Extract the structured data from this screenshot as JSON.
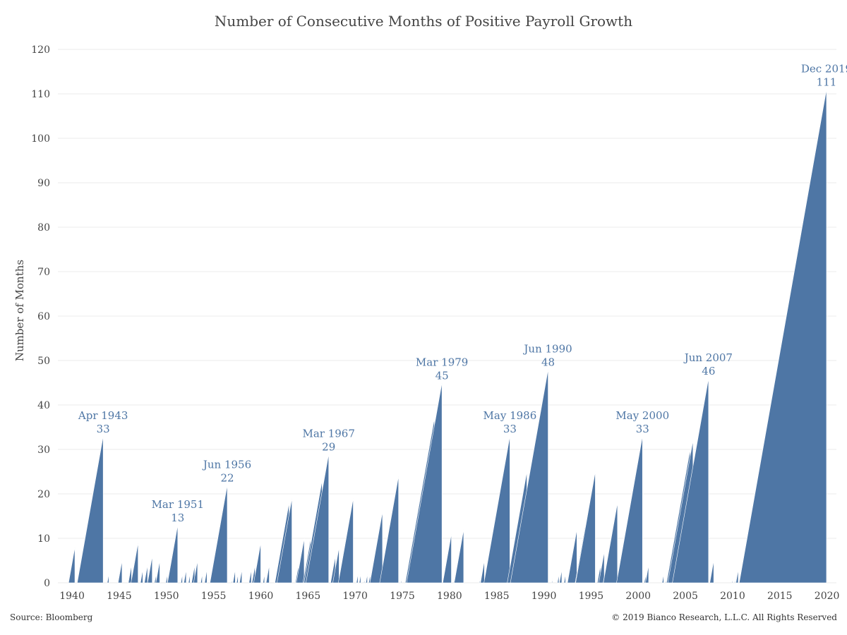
{
  "source": "Source: Bloomberg",
  "copyright": "© 2019 Bianco Research, L.L.C. All Rights Reserved",
  "colors": {
    "bar": "#4e76a5",
    "annotation": "#4e76a5",
    "grid": "#ebebeb",
    "text": "#444444"
  },
  "chart_data": {
    "type": "area",
    "title": "Number of Consecutive Months of Positive Payroll Growth",
    "xlabel": "",
    "ylabel": "Number of Months",
    "xlim": [
      1938.5,
      2021
    ],
    "ylim": [
      0,
      120
    ],
    "yticks": [
      0,
      10,
      20,
      30,
      40,
      50,
      60,
      70,
      80,
      90,
      100,
      110,
      120
    ],
    "xticks": [
      "1940",
      "1945",
      "1950",
      "1955",
      "1960",
      "1965",
      "1970",
      "1975",
      "1980",
      "1985",
      "1990",
      "1995",
      "2000",
      "2005",
      "2010",
      "2015",
      "2020"
    ],
    "grid": true,
    "legend": "none",
    "runs": [
      {
        "end": 1939.8,
        "peak": 2
      },
      {
        "end": 1940.3,
        "peak": 8
      },
      {
        "end": 1940.7,
        "peak": 2
      },
      {
        "end": 1941.3,
        "peak": 7
      },
      {
        "end": 1943.3,
        "peak": 33
      },
      {
        "end": 1943.9,
        "peak": 2
      },
      {
        "end": 1945.1,
        "peak": 3
      },
      {
        "end": 1945.3,
        "peak": 5
      },
      {
        "end": 1946.3,
        "peak": 4
      },
      {
        "end": 1947.0,
        "peak": 9
      },
      {
        "end": 1947.5,
        "peak": 3
      },
      {
        "end": 1948.0,
        "peak": 4
      },
      {
        "end": 1948.5,
        "peak": 6
      },
      {
        "end": 1948.9,
        "peak": 2
      },
      {
        "end": 1949.3,
        "peak": 5
      },
      {
        "end": 1950.1,
        "peak": 2
      },
      {
        "end": 1950.5,
        "peak": 3
      },
      {
        "end": 1951.2,
        "peak": 13
      },
      {
        "end": 1951.7,
        "peak": 2
      },
      {
        "end": 1952.1,
        "peak": 3
      },
      {
        "end": 1952.5,
        "peak": 2
      },
      {
        "end": 1953.0,
        "peak": 4
      },
      {
        "end": 1953.3,
        "peak": 5
      },
      {
        "end": 1953.8,
        "peak": 2
      },
      {
        "end": 1954.3,
        "peak": 3
      },
      {
        "end": 1954.8,
        "peak": 1
      },
      {
        "end": 1955.3,
        "peak": 2
      },
      {
        "end": 1955.9,
        "peak": 3
      },
      {
        "end": 1956.45,
        "peak": 22
      },
      {
        "end": 1957.0,
        "peak": 1
      },
      {
        "end": 1957.3,
        "peak": 3
      },
      {
        "end": 1957.6,
        "peak": 2
      },
      {
        "end": 1958.0,
        "peak": 3
      },
      {
        "end": 1959.0,
        "peak": 3
      },
      {
        "end": 1959.4,
        "peak": 4
      },
      {
        "end": 1960.0,
        "peak": 9
      },
      {
        "end": 1960.4,
        "peak": 2
      },
      {
        "end": 1960.9,
        "peak": 4
      },
      {
        "end": 1961.6,
        "peak": 1
      },
      {
        "end": 1963.0,
        "peak": 18
      },
      {
        "end": 1963.3,
        "peak": 19
      },
      {
        "end": 1964.0,
        "peak": 4
      },
      {
        "end": 1964.6,
        "peak": 10
      },
      {
        "end": 1965.3,
        "peak": 10
      },
      {
        "end": 1966.5,
        "peak": 23
      },
      {
        "end": 1967.2,
        "peak": 29
      },
      {
        "end": 1967.9,
        "peak": 6
      },
      {
        "end": 1968.3,
        "peak": 8
      },
      {
        "end": 1969.0,
        "peak": 7
      },
      {
        "end": 1969.8,
        "peak": 19
      },
      {
        "end": 1970.3,
        "peak": 2
      },
      {
        "end": 1970.6,
        "peak": 2
      },
      {
        "end": 1971.0,
        "peak": 1
      },
      {
        "end": 1971.3,
        "peak": 2
      },
      {
        "end": 1971.6,
        "peak": 2
      },
      {
        "end": 1972.9,
        "peak": 16
      },
      {
        "end": 1973.1,
        "peak": 2
      },
      {
        "end": 1974.6,
        "peak": 24
      },
      {
        "end": 1974.9,
        "peak": 1
      },
      {
        "end": 1975.6,
        "peak": 2
      },
      {
        "end": 1976.6,
        "peak": 13
      },
      {
        "end": 1978.4,
        "peak": 37
      },
      {
        "end": 1979.2,
        "peak": 45
      },
      {
        "end": 1979.5,
        "peak": 2
      },
      {
        "end": 1980.2,
        "peak": 11
      },
      {
        "end": 1980.5,
        "peak": 1
      },
      {
        "end": 1981.5,
        "peak": 12
      },
      {
        "end": 1983.2,
        "peak": 1
      },
      {
        "end": 1983.7,
        "peak": 5
      },
      {
        "end": 1984.3,
        "peak": 3
      },
      {
        "end": 1984.6,
        "peak": 10
      },
      {
        "end": 1986.4,
        "peak": 33
      },
      {
        "end": 1986.8,
        "peak": 2
      },
      {
        "end": 1988.2,
        "peak": 25
      },
      {
        "end": 1990.45,
        "peak": 48
      },
      {
        "end": 1990.9,
        "peak": 1
      },
      {
        "end": 1991.6,
        "peak": 2
      },
      {
        "end": 1991.9,
        "peak": 3
      },
      {
        "end": 1992.3,
        "peak": 2
      },
      {
        "end": 1992.6,
        "peak": 1
      },
      {
        "end": 1993.5,
        "peak": 12
      },
      {
        "end": 1994.4,
        "peak": 13
      },
      {
        "end": 1995.45,
        "peak": 25
      },
      {
        "end": 1996.0,
        "peak": 4
      },
      {
        "end": 1996.4,
        "peak": 7
      },
      {
        "end": 1997.2,
        "peak": 11
      },
      {
        "end": 1997.8,
        "peak": 18
      },
      {
        "end": 1998.8,
        "peak": 10
      },
      {
        "end": 2000.45,
        "peak": 33
      },
      {
        "end": 2000.8,
        "peak": 2
      },
      {
        "end": 2001.1,
        "peak": 4
      },
      {
        "end": 2002.7,
        "peak": 2
      },
      {
        "end": 2003.0,
        "peak": 1
      },
      {
        "end": 2003.4,
        "peak": 1
      },
      {
        "end": 2003.8,
        "peak": 1
      },
      {
        "end": 2004.4,
        "peak": 6
      },
      {
        "end": 2005.5,
        "peak": 30
      },
      {
        "end": 2005.8,
        "peak": 32
      },
      {
        "end": 2007.45,
        "peak": 46
      },
      {
        "end": 2008.0,
        "peak": 5
      },
      {
        "end": 2010.0,
        "peak": 1
      },
      {
        "end": 2010.3,
        "peak": 1
      },
      {
        "end": 2010.6,
        "peak": 3
      },
      {
        "end": 2010.9,
        "peak": 1
      },
      {
        "end": 2012.1,
        "peak": 15
      },
      {
        "end": 2014.2,
        "peak": 39
      },
      {
        "end": 2016.2,
        "peak": 64
      },
      {
        "end": 2018.1,
        "peak": 87
      },
      {
        "end": 2019.95,
        "peak": 111
      }
    ],
    "annotations": [
      {
        "x": 1943.3,
        "y": 33,
        "date": "Apr 1943",
        "value": "33"
      },
      {
        "x": 1951.2,
        "y": 13,
        "date": "Mar 1951",
        "value": "13"
      },
      {
        "x": 1956.45,
        "y": 22,
        "date": "Jun 1956",
        "value": "22"
      },
      {
        "x": 1967.2,
        "y": 29,
        "date": "Mar 1967",
        "value": "29"
      },
      {
        "x": 1979.2,
        "y": 45,
        "date": "Mar 1979",
        "value": "45"
      },
      {
        "x": 1986.4,
        "y": 33,
        "date": "May 1986",
        "value": "33"
      },
      {
        "x": 1990.45,
        "y": 48,
        "date": "Jun 1990",
        "value": "48"
      },
      {
        "x": 2000.45,
        "y": 33,
        "date": "May 2000",
        "value": "33"
      },
      {
        "x": 2007.45,
        "y": 46,
        "date": "Jun 2007",
        "value": "46"
      },
      {
        "x": 2019.95,
        "y": 111,
        "date": "Dec 2019",
        "value": "111"
      }
    ]
  }
}
